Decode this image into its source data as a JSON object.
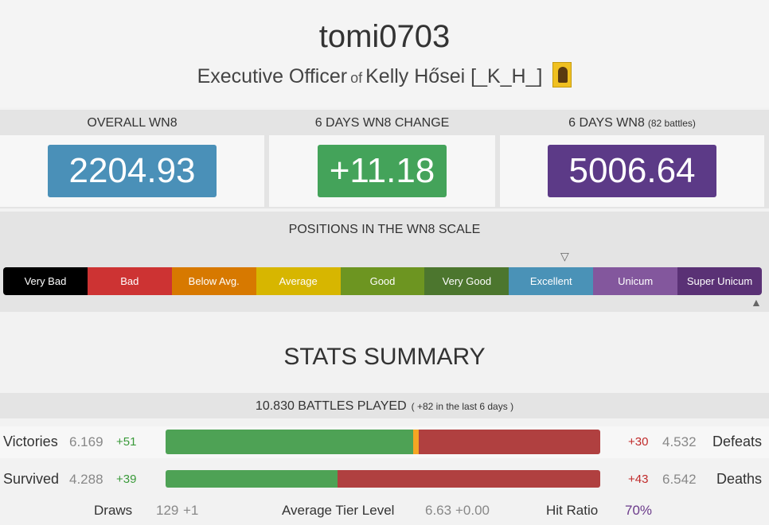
{
  "player": {
    "name": "tomi0703",
    "role": "Executive Officer",
    "of_word": "of",
    "clan": "Kelly Hősei [_K_H_]"
  },
  "wn8": {
    "overall_title": "OVERALL WN8",
    "overall_value": "2204.93",
    "change_title": "6 DAYS WN8 CHANGE",
    "change_value": "+11.18",
    "recent_title": "6 DAYS WN8",
    "recent_battles": "(82 battles)",
    "recent_value": "5006.64",
    "colors": {
      "overall": "#4a90b8",
      "change": "#44a35a",
      "recent": "#5c3a87"
    }
  },
  "scale": {
    "title": "POSITIONS IN THE WN8 SCALE",
    "cells": [
      {
        "label": "Very Bad",
        "color": "#000000"
      },
      {
        "label": "Bad",
        "color": "#cd3333"
      },
      {
        "label": "Below Avg.",
        "color": "#d77900"
      },
      {
        "label": "Average",
        "color": "#d7b600"
      },
      {
        "label": "Good",
        "color": "#6d9521"
      },
      {
        "label": "Very Good",
        "color": "#4c762e"
      },
      {
        "label": "Excellent",
        "color": "#4a92b7"
      },
      {
        "label": "Unicum",
        "color": "#83579d"
      },
      {
        "label": "Super Unicum",
        "color": "#5a3175"
      }
    ],
    "top_marker_icon": "triangle-down-icon",
    "bottom_marker_icon": "triangle-up-icon"
  },
  "stats": {
    "title": "STATS SUMMARY",
    "battles_played": "10.830 BATTLES PLAYED",
    "battles_recent": "( +82 in the last 6 days )",
    "victories": {
      "label": "Victories",
      "value": "6.169",
      "delta": "+51",
      "neg_delta": "+30",
      "neg_value": "4.532",
      "neg_label": "Defeats",
      "win_fraction": 0.57,
      "draw_fraction": 0.012
    },
    "survived": {
      "label": "Survived",
      "value": "4.288",
      "delta": "+39",
      "neg_delta": "+43",
      "neg_value": "6.542",
      "neg_label": "Deaths",
      "win_fraction": 0.396
    },
    "draws_label": "Draws",
    "draws_value": "129",
    "draws_delta": "+1",
    "avg_tier_label": "Average Tier Level",
    "avg_tier_value": "6.63",
    "avg_tier_delta": "+0.00",
    "hit_ratio_label": "Hit Ratio",
    "hit_ratio_value": "70%"
  }
}
